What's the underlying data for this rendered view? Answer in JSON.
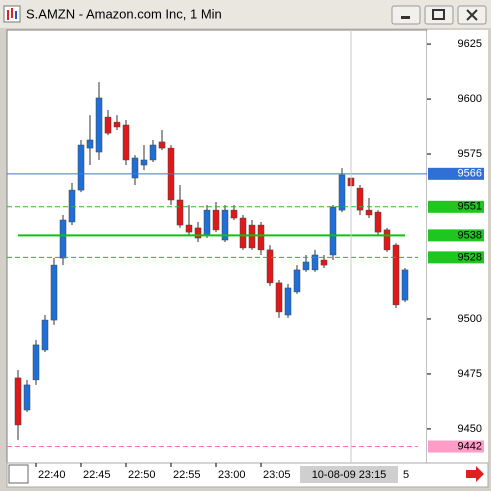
{
  "window_title": "S.AMZN - Amazon.com Inc, 1 Min",
  "chart_data": {
    "type": "candlestick",
    "categories": [
      null,
      null,
      "22:40",
      null,
      null,
      null,
      null,
      "22:45",
      null,
      null,
      null,
      null,
      "22:50",
      null,
      null,
      null,
      null,
      "22:55",
      null,
      null,
      null,
      null,
      "23:00",
      null,
      null,
      null,
      null,
      "23:05",
      null,
      null,
      null,
      null,
      null,
      null,
      null,
      null,
      null,
      null,
      null,
      null,
      null,
      null,
      null,
      null
    ],
    "open": [
      9473.2,
      9458.6,
      9472.3,
      9485.9,
      9499.5,
      9527.7,
      9544.1,
      9558.6,
      9577.7,
      9575.9,
      9591.8,
      9589.5,
      9588.2,
      9564.1,
      9570.0,
      9572.3,
      9580.5,
      9577.7,
      9554.1,
      9542.7,
      9541.4,
      9538.2,
      9549.5,
      9535.9,
      9549.5,
      9545.9,
      9542.7,
      9542.7,
      9531.4,
      9516.4,
      9501.8,
      9512.3,
      9522.3,
      9522.3,
      9526.8,
      9529.1,
      9549.5,
      9564.1,
      9559.5,
      9549.5,
      9548.6,
      9540.5,
      9533.6,
      9508.6
    ],
    "high": [
      9476.8,
      9472.3,
      9490.5,
      9501.8,
      9527.7,
      9547.3,
      9561.8,
      9581.4,
      9592.7,
      9607.7,
      9595.0,
      9592.7,
      9590.5,
      9574.5,
      9579.1,
      9581.4,
      9585.9,
      9579.1,
      9560.9,
      9551.8,
      9544.1,
      9551.8,
      9553.2,
      9551.8,
      9551.8,
      9547.3,
      9545.0,
      9544.1,
      9533.6,
      9517.7,
      9515.9,
      9524.5,
      9529.1,
      9531.4,
      9529.1,
      9551.8,
      9568.6,
      9565.5,
      9560.9,
      9555.0,
      9549.5,
      9541.4,
      9534.5,
      9523.2
    ],
    "low": [
      9445.0,
      9457.7,
      9470.0,
      9485.0,
      9497.3,
      9524.5,
      9542.7,
      9557.7,
      9570.0,
      9572.3,
      9583.6,
      9585.9,
      9570.0,
      9560.9,
      9567.7,
      9571.4,
      9576.8,
      9551.8,
      9541.4,
      9538.2,
      9535.0,
      9536.8,
      9539.5,
      9535.0,
      9545.0,
      9531.4,
      9531.4,
      9529.1,
      9515.0,
      9500.5,
      9500.5,
      9511.4,
      9521.4,
      9521.4,
      9523.2,
      9526.8,
      9548.6,
      9557.7,
      9547.3,
      9545.9,
      9538.2,
      9530.5,
      9505.0,
      9507.7
    ],
    "close": [
      9451.8,
      9470.0,
      9488.2,
      9499.5,
      9524.5,
      9545.0,
      9558.6,
      9579.1,
      9581.4,
      9600.5,
      9584.5,
      9587.3,
      9572.3,
      9573.2,
      9572.3,
      9579.1,
      9577.7,
      9554.1,
      9542.7,
      9539.5,
      9536.8,
      9549.5,
      9540.5,
      9549.5,
      9545.9,
      9532.3,
      9532.3,
      9531.4,
      9516.4,
      9503.2,
      9514.1,
      9522.3,
      9525.9,
      9529.1,
      9524.5,
      9550.9,
      9565.5,
      9560.5,
      9549.5,
      9547.3,
      9539.5,
      9531.4,
      9506.4,
      9522.3
    ],
    "up_color": "#1e6fd6",
    "down_color": "#e01818",
    "ylim": [
      9434.5,
      9631.4
    ],
    "yticks": [
      9450,
      9475,
      9500,
      9575,
      9600,
      9625
    ],
    "levels": [
      {
        "value": 9566,
        "color": "#3a78d8",
        "style": "solid",
        "label_color": "#2f6fd6",
        "text_color": "#ffffff"
      },
      {
        "value": 9551,
        "color": "#22b822",
        "style": "dashed",
        "label_color": "#1fc61f",
        "text_color": "#000000"
      },
      {
        "value": 9538,
        "color": "#10c010",
        "style": "thick",
        "label_color": "#1fc61f",
        "text_color": "#000000"
      },
      {
        "value": 9528,
        "color": "#22b822",
        "style": "dashed",
        "label_color": "#1fc61f",
        "text_color": "#000000"
      },
      {
        "value": 9442,
        "color": "#ff6fb0",
        "style": "dashed",
        "label_color": "#ff9cc8",
        "text_color": "#000000"
      }
    ],
    "crosshair": {
      "category_index": 37,
      "label": "10-08-09 23:15"
    },
    "clipped_label": "5"
  }
}
